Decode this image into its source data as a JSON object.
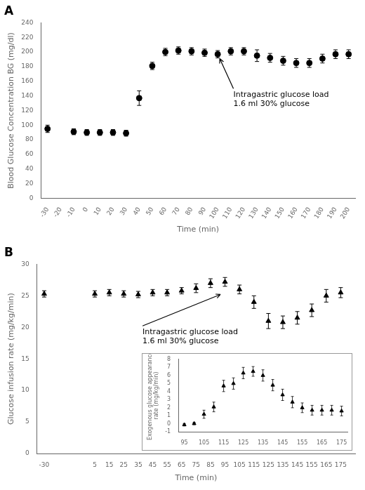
{
  "chart_data": [
    {
      "type": "scatter",
      "title": "A",
      "x": [
        -30,
        -10,
        0,
        10,
        20,
        30,
        40,
        50,
        60,
        70,
        80,
        90,
        100,
        110,
        120,
        130,
        140,
        150,
        160,
        170,
        180,
        190,
        200
      ],
      "values": [
        95,
        91,
        90,
        90,
        90,
        89,
        137,
        181,
        200,
        202,
        201,
        199,
        197,
        201,
        201,
        195,
        192,
        188,
        185,
        185,
        191,
        197,
        197
      ],
      "errors": [
        5,
        4,
        4,
        4,
        4,
        4,
        10,
        5,
        5,
        5,
        5,
        5,
        5,
        5,
        5,
        8,
        6,
        6,
        6,
        6,
        6,
        6,
        6
      ],
      "color": "black",
      "marker": "circle",
      "xlabel": "Time (min)",
      "ylabel": "Blood Glucose Concentration BG (mg/dl)",
      "xlim": [
        -35,
        205
      ],
      "ylim": [
        0,
        240
      ],
      "xticks": [
        -30,
        -20,
        -10,
        0,
        10,
        20,
        30,
        40,
        50,
        60,
        70,
        80,
        90,
        100,
        110,
        120,
        130,
        140,
        150,
        160,
        170,
        180,
        190,
        200
      ],
      "yticks": [
        0,
        20,
        40,
        60,
        80,
        100,
        120,
        140,
        160,
        180,
        200,
        220,
        240
      ],
      "grid": false,
      "annotations": [
        {
          "text": "Intragastric glucose load\n1.6 ml 30% glucose",
          "xy": [
            100,
            197
          ],
          "xytext": [
            112,
            148
          ]
        }
      ]
    },
    {
      "type": "scatter",
      "title": "B",
      "x": [
        -30,
        5,
        15,
        25,
        35,
        45,
        55,
        65,
        75,
        85,
        95,
        105,
        115,
        125,
        135,
        145,
        155,
        165,
        175
      ],
      "values": [
        25.3,
        25.3,
        25.5,
        25.3,
        25.2,
        25.5,
        25.5,
        25.8,
        26.2,
        27.0,
        27.2,
        26.0,
        24.0,
        21.0,
        20.8,
        21.5,
        22.7,
        25.0,
        25.5
      ],
      "errors": [
        0.5,
        0.5,
        0.5,
        0.5,
        0.5,
        0.5,
        0.5,
        0.5,
        0.7,
        0.7,
        0.7,
        0.7,
        1.0,
        1.2,
        1.0,
        1.0,
        1.0,
        1.0,
        0.8
      ],
      "color": "black",
      "marker": "triangle",
      "xlabel": "Time (min)",
      "ylabel": "Glucose infusion rate (mg/kg/min)",
      "xlim": [
        -35,
        185
      ],
      "ylim": [
        0,
        30
      ],
      "xticks": [
        -30,
        5,
        15,
        25,
        35,
        45,
        55,
        65,
        75,
        85,
        95,
        105,
        115,
        125,
        135,
        145,
        155,
        165,
        175
      ],
      "yticks": [
        0,
        5,
        10,
        15,
        20,
        25,
        30
      ],
      "grid": false,
      "annotations": [
        {
          "text": "Intragastric glucose load\n1.6 ml 30% glucose",
          "xy": [
            95,
            25.5
          ],
          "xytext": [
            38,
            20
          ]
        }
      ]
    },
    {
      "type": "scatter",
      "x": [
        95,
        100,
        105,
        110,
        115,
        120,
        125,
        130,
        135,
        140,
        145,
        150,
        155,
        160,
        165,
        170,
        175
      ],
      "values": [
        -0.1,
        0.05,
        1.2,
        2.1,
        4.7,
        5.0,
        6.3,
        6.5,
        6.0,
        4.8,
        3.6,
        2.7,
        2.0,
        1.7,
        1.7,
        1.7,
        1.6
      ],
      "errors": [
        0.15,
        0.15,
        0.5,
        0.6,
        0.7,
        0.7,
        0.7,
        0.6,
        0.7,
        0.7,
        0.7,
        0.7,
        0.6,
        0.6,
        0.6,
        0.6,
        0.6
      ],
      "color": "black",
      "marker": "triangle",
      "ylabel": "Exogenous glucose appearance\nrate (mg/kg/min)",
      "xlim": [
        92,
        178
      ],
      "ylim": [
        -1,
        8
      ],
      "xticks": [
        95,
        105,
        115,
        125,
        135,
        145,
        155,
        165,
        175
      ],
      "yticks": [
        -1,
        0,
        1,
        2,
        3,
        4,
        5,
        6,
        7,
        8
      ],
      "grid": false
    }
  ]
}
